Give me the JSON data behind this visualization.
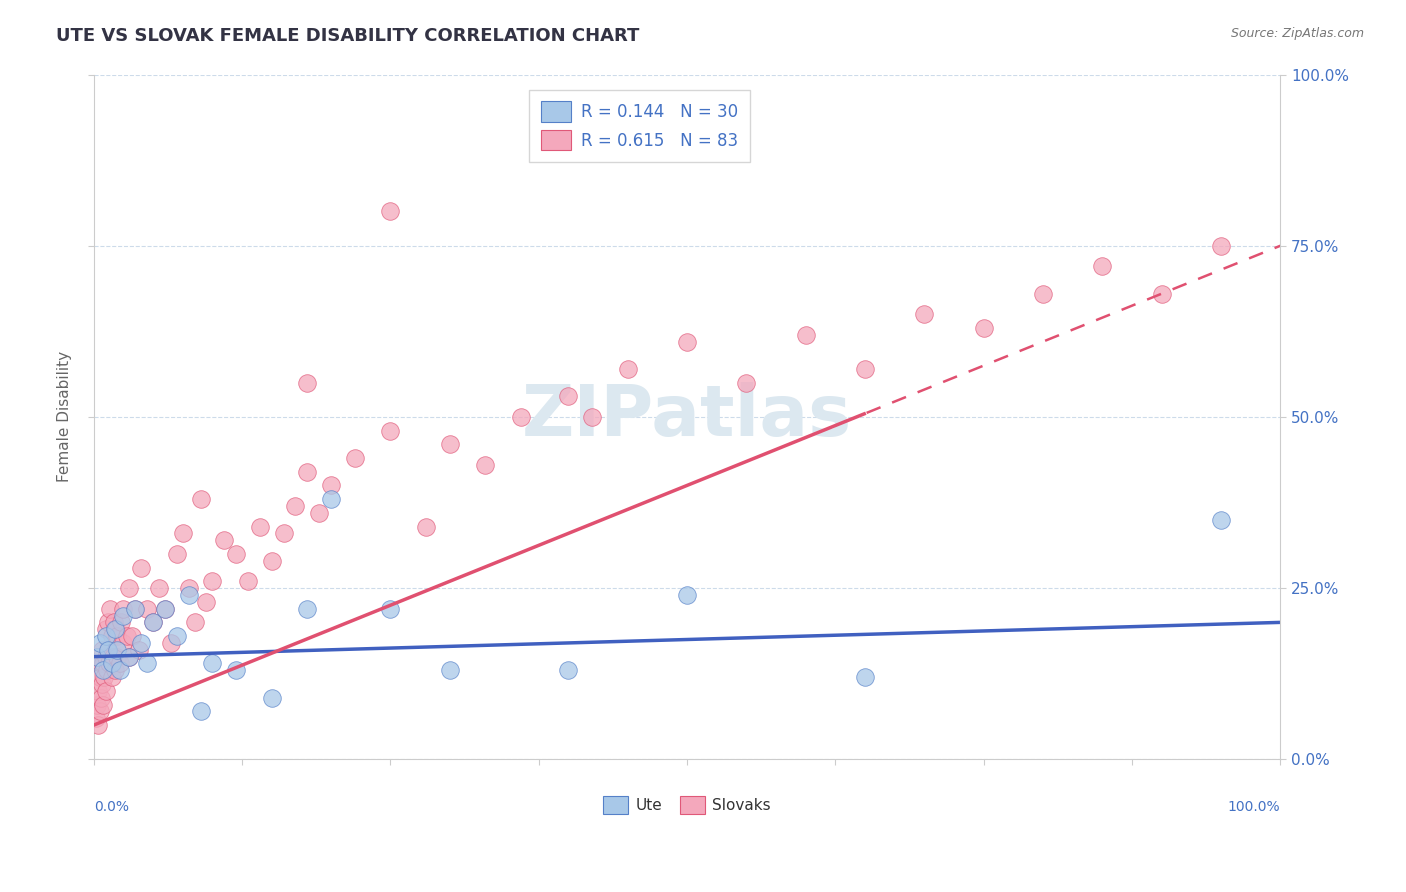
{
  "title": "UTE VS SLOVAK FEMALE DISABILITY CORRELATION CHART",
  "source": "Source: ZipAtlas.com",
  "ylabel": "Female Disability",
  "ytick_labels": [
    "0.0%",
    "25.0%",
    "50.0%",
    "75.0%",
    "100.0%"
  ],
  "ytick_values": [
    0,
    25,
    50,
    75,
    100
  ],
  "xlim": [
    0,
    100
  ],
  "ylim": [
    0,
    100
  ],
  "legend_label1": "R = 0.144   N = 30",
  "legend_label2": "R = 0.615   N = 83",
  "legend_bottom1": "Ute",
  "legend_bottom2": "Slovaks",
  "ute_color": "#a8c8e8",
  "slovak_color": "#f4a8bc",
  "ute_edge_color": "#5580c8",
  "slovak_edge_color": "#e05878",
  "ute_line_color": "#4060c0",
  "slovak_line_color": "#e05070",
  "title_color": "#333344",
  "axis_label_color": "#4472c4",
  "background_color": "#ffffff",
  "grid_color": "#c8d8e8",
  "watermark_color": "#dce8f0",
  "ute_r": 0.144,
  "ute_n": 30,
  "slovak_r": 0.615,
  "slovak_n": 83,
  "ute_x": [
    0.3,
    0.5,
    0.8,
    1.0,
    1.2,
    1.5,
    1.8,
    2.0,
    2.2,
    2.5,
    3.0,
    3.5,
    4.0,
    4.5,
    5.0,
    6.0,
    7.0,
    8.0,
    9.0,
    10.0,
    12.0,
    15.0,
    18.0,
    20.0,
    25.0,
    30.0,
    40.0,
    50.0,
    65.0,
    95.0
  ],
  "ute_y": [
    15.0,
    17.0,
    13.0,
    18.0,
    16.0,
    14.0,
    19.0,
    16.0,
    13.0,
    21.0,
    15.0,
    22.0,
    17.0,
    14.0,
    20.0,
    22.0,
    18.0,
    24.0,
    7.0,
    14.0,
    13.0,
    9.0,
    22.0,
    38.0,
    22.0,
    13.0,
    13.0,
    24.0,
    12.0,
    35.0
  ],
  "slovak_x": [
    0.2,
    0.3,
    0.4,
    0.4,
    0.5,
    0.5,
    0.6,
    0.6,
    0.7,
    0.7,
    0.8,
    0.8,
    0.9,
    1.0,
    1.0,
    1.0,
    1.1,
    1.2,
    1.2,
    1.3,
    1.4,
    1.5,
    1.5,
    1.6,
    1.7,
    1.8,
    1.9,
    2.0,
    2.0,
    2.2,
    2.3,
    2.5,
    2.5,
    2.8,
    3.0,
    3.0,
    3.2,
    3.5,
    3.8,
    4.0,
    4.5,
    5.0,
    5.5,
    6.0,
    6.5,
    7.0,
    7.5,
    8.0,
    8.5,
    9.0,
    9.5,
    10.0,
    11.0,
    12.0,
    13.0,
    14.0,
    15.0,
    16.0,
    17.0,
    18.0,
    19.0,
    20.0,
    22.0,
    25.0,
    28.0,
    30.0,
    33.0,
    36.0,
    40.0,
    45.0,
    50.0,
    55.0,
    60.0,
    65.0,
    70.0,
    75.0,
    80.0,
    85.0,
    90.0,
    95.0,
    42.0,
    18.0,
    25.0
  ],
  "slovak_y": [
    6.0,
    8.0,
    5.0,
    10.0,
    12.0,
    7.0,
    14.0,
    9.0,
    11.0,
    16.0,
    8.0,
    14.0,
    12.0,
    10.0,
    15.0,
    19.0,
    13.0,
    16.0,
    20.0,
    14.0,
    22.0,
    12.0,
    18.0,
    15.0,
    20.0,
    13.0,
    19.0,
    15.0,
    18.0,
    14.0,
    20.0,
    17.0,
    22.0,
    18.0,
    15.0,
    25.0,
    18.0,
    22.0,
    16.0,
    28.0,
    22.0,
    20.0,
    25.0,
    22.0,
    17.0,
    30.0,
    33.0,
    25.0,
    20.0,
    38.0,
    23.0,
    26.0,
    32.0,
    30.0,
    26.0,
    34.0,
    29.0,
    33.0,
    37.0,
    42.0,
    36.0,
    40.0,
    44.0,
    48.0,
    34.0,
    46.0,
    43.0,
    50.0,
    53.0,
    57.0,
    61.0,
    55.0,
    62.0,
    57.0,
    65.0,
    63.0,
    68.0,
    72.0,
    68.0,
    75.0,
    50.0,
    55.0,
    80.0
  ],
  "slovak_dash_start_x": 65.0,
  "ute_trend_intercept": 15.0,
  "ute_trend_slope": 0.05,
  "slovak_trend_intercept": 5.0,
  "slovak_trend_slope": 0.7
}
